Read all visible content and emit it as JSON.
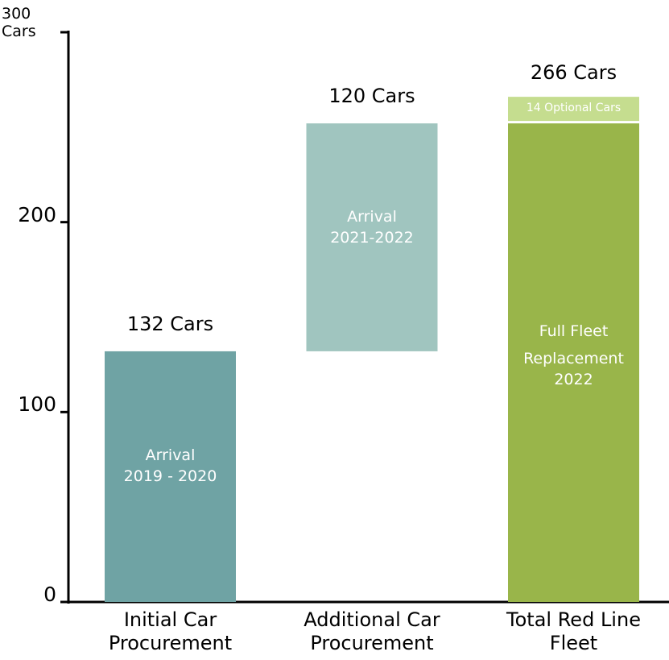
{
  "chart_data": {
    "type": "waterfall",
    "categories": [
      "Initial Car Procurement",
      "Additional Car Procurement",
      "Total Red Line Fleet"
    ],
    "values": [
      132,
      120,
      252
    ],
    "value_labels": [
      "132 Cars",
      "120 Cars",
      null
    ],
    "kinds": [
      "step",
      "step",
      "total"
    ],
    "colors": [
      "#6fa3a4",
      "#a0c5bf",
      "#99b54a"
    ],
    "inner_labels": [
      [
        "Arrival",
        "2019 - 2020"
      ],
      [
        "Arrival",
        "2021-2022"
      ],
      [
        "Full Fleet",
        "Replacement",
        "2022"
      ]
    ],
    "optional": {
      "value": 14,
      "label": "14 Optional Cars",
      "color": "#c5dd8f"
    },
    "total_label": {
      "value": 266,
      "label": "266 Cars"
    },
    "ylim": [
      0,
      300
    ],
    "yticks": [
      0,
      100,
      200,
      {
        "value": 300,
        "label": "300 Cars"
      }
    ]
  }
}
